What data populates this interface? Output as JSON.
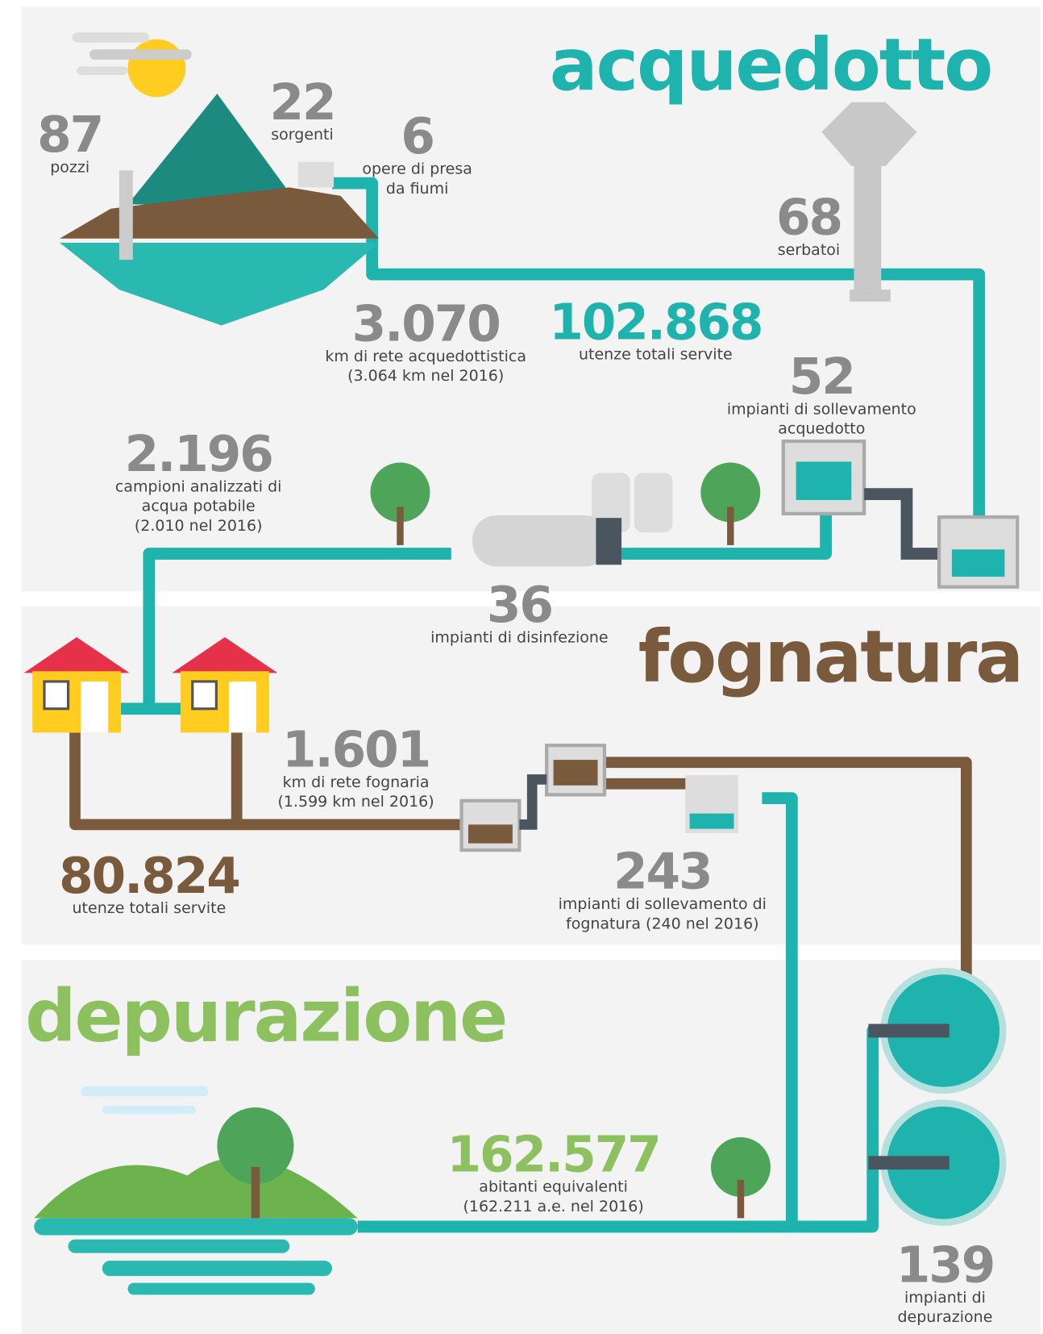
{
  "sections": [
    {
      "title": "acquedotto",
      "stats": [
        {
          "value": "87",
          "label": [
            "pozzi"
          ]
        },
        {
          "value": "22",
          "label": [
            "sorgenti"
          ]
        },
        {
          "value": "6",
          "label": [
            "opere di presa",
            "da fiumi"
          ]
        },
        {
          "value": "68",
          "label": [
            "serbatoi"
          ]
        },
        {
          "value": "3.070",
          "label": [
            "km di rete acquedottistica",
            "(3.064 km nel 2016)"
          ]
        },
        {
          "value": "102.868",
          "label": [
            "utenze totali servite"
          ]
        },
        {
          "value": "52",
          "label": [
            "impianti di sollevamento",
            "acquedotto"
          ]
        },
        {
          "value": "2.196",
          "label": [
            "campioni analizzati di",
            "acqua potabile",
            "(2.010 nel 2016)"
          ]
        },
        {
          "value": "36",
          "label": [
            "impianti di disinfezione"
          ]
        }
      ]
    },
    {
      "title": "fognatura",
      "stats": [
        {
          "value": "1.601",
          "label": [
            "km di rete fognaria",
            "(1.599 km nel 2016)"
          ]
        },
        {
          "value": "80.824",
          "label": [
            "utenze totali servite"
          ]
        },
        {
          "value": "243",
          "label": [
            "impianti di sollevamento di",
            "fognatura (240 nel 2016)"
          ]
        }
      ]
    },
    {
      "title": "depurazione",
      "stats": [
        {
          "value": "162.577",
          "label": [
            "abitanti equivalenti",
            "(162.211 a.e. nel 2016)"
          ]
        },
        {
          "value": "139",
          "label": [
            "impianti di",
            "depurazione"
          ]
        }
      ]
    }
  ]
}
